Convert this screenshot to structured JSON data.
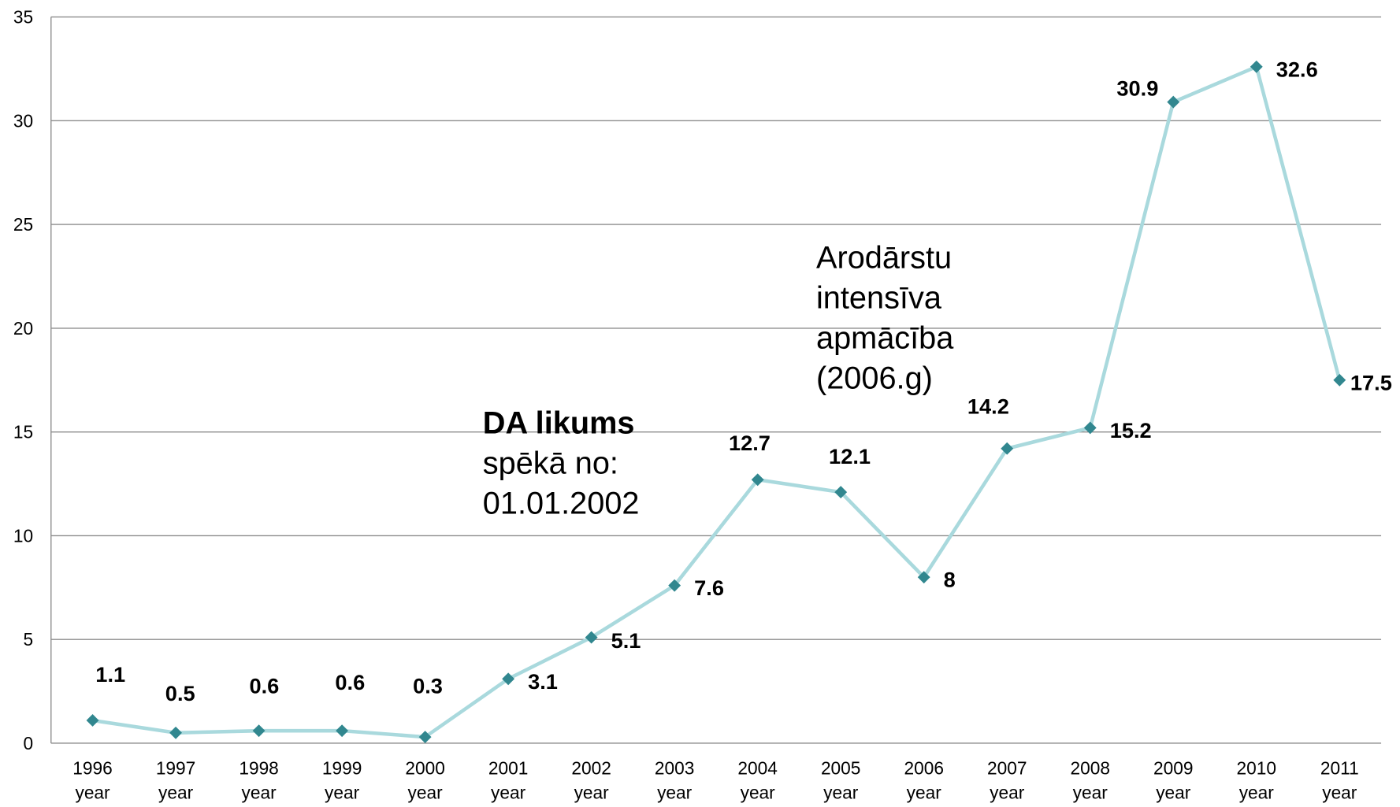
{
  "chart_data": {
    "type": "line",
    "categories": [
      "1996 year",
      "1997 year",
      "1998 year",
      "1999 year",
      "2000 year",
      "2001 year",
      "2002 year",
      "2003 year",
      "2004 year",
      "2005 year",
      "2006 year",
      "2007 year",
      "2008 year",
      "2009 year",
      "2010 year",
      "2011 year"
    ],
    "series": [
      {
        "color": "#a9d9dd",
        "marker_color": "#31878f",
        "values": [
          1.1,
          0.5,
          0.6,
          0.6,
          0.3,
          3.1,
          5.1,
          7.6,
          12.7,
          12.1,
          8,
          14.2,
          15.2,
          30.9,
          32.6,
          17.5
        ]
      }
    ],
    "ylim": [
      0,
      35
    ],
    "yticks": [
      0,
      5,
      10,
      15,
      20,
      25,
      30,
      35
    ],
    "grid": true,
    "annotations": [
      {
        "lines": [
          "DA likums",
          "spēkā no:",
          "01.01.2002"
        ]
      },
      {
        "lines": [
          "Arodārstu",
          "intensīva",
          "apmācība",
          "(2006.g)"
        ]
      }
    ]
  }
}
